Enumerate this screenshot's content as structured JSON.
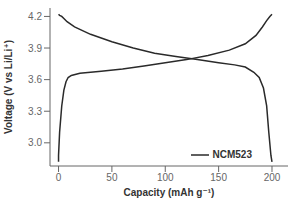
{
  "chart_data": {
    "type": "line",
    "xlabel": "Capacity (mAh g⁻¹)",
    "ylabel": "Voltage (V vs Li/Li⁺)",
    "xlim": [
      -8,
      215
    ],
    "ylim": [
      2.78,
      4.28
    ],
    "xticks": [
      0,
      50,
      100,
      150,
      200
    ],
    "yticks": [
      {
        "value": 3.0,
        "label": "3.0"
      },
      3.3,
      3.6,
      3.9,
      4.2
    ],
    "grid": false,
    "legend": "lower right",
    "series": [
      {
        "name": "NCM523",
        "color": "#2a2a2a",
        "x": [
          0,
          1,
          3,
          5,
          8,
          15,
          30,
          50,
          70,
          90,
          110,
          130,
          150,
          165,
          175,
          183,
          188,
          192,
          195,
          197,
          199,
          200
        ],
        "values": [
          4.22,
          4.21,
          4.2,
          4.18,
          4.15,
          4.1,
          4.03,
          3.96,
          3.9,
          3.85,
          3.82,
          3.79,
          3.76,
          3.74,
          3.72,
          3.67,
          3.62,
          3.52,
          3.35,
          3.1,
          2.88,
          2.82
        ]
      },
      {
        "color": "#2a2a2a",
        "x": [
          0,
          0,
          1,
          3,
          5,
          7,
          9,
          12,
          20,
          40,
          60,
          80,
          100,
          120,
          140,
          160,
          175,
          185,
          191,
          195,
          198,
          200
        ],
        "values": [
          2.82,
          2.88,
          3.1,
          3.35,
          3.5,
          3.58,
          3.62,
          3.64,
          3.66,
          3.68,
          3.7,
          3.73,
          3.76,
          3.79,
          3.83,
          3.88,
          3.94,
          4.02,
          4.1,
          4.16,
          4.2,
          4.22
        ]
      }
    ]
  }
}
